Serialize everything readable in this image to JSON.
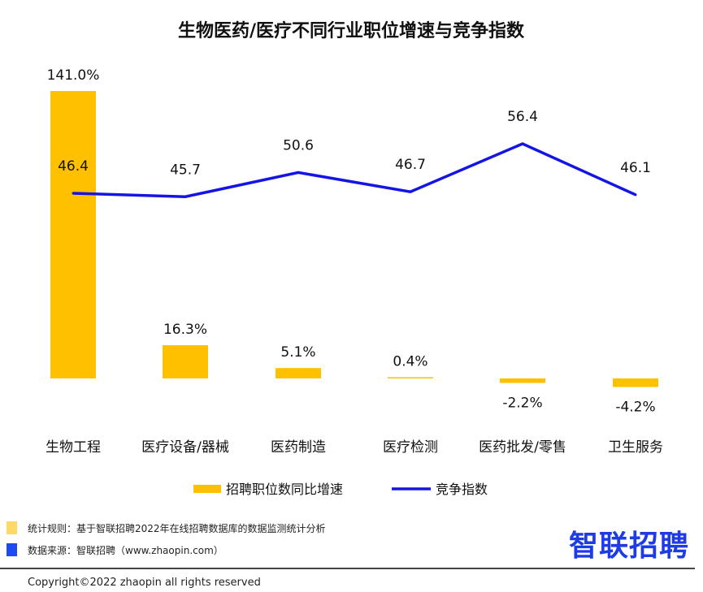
{
  "chart_data": {
    "type": "bar",
    "title": "生物医药/医疗不同行业职位增速与竞争指数",
    "categories": [
      "生物工程",
      "医疗设备/器械",
      "医药制造",
      "医疗检测",
      "医药批发/零售",
      "卫生服务"
    ],
    "series": [
      {
        "name": "招聘职位数同比增速",
        "type": "bar",
        "values": [
          141.0,
          16.3,
          5.1,
          0.4,
          -2.2,
          -4.2
        ],
        "labels": [
          "141.0%",
          "16.3%",
          "5.1%",
          "0.4%",
          "-2.2%",
          "-4.2%"
        ],
        "color": "#FFC000"
      },
      {
        "name": "竞争指数",
        "type": "line",
        "values": [
          46.4,
          45.7,
          50.6,
          46.7,
          56.4,
          46.1
        ],
        "labels": [
          "46.4",
          "45.7",
          "50.6",
          "46.7",
          "56.4",
          "46.1"
        ],
        "color": "#1414E6"
      }
    ],
    "legend_position": "bottom",
    "grid": false
  },
  "footer": {
    "rule": "统计规则：基于智联招聘2022年在线招聘数据库的数据监测统计分析",
    "source": "数据来源：智联招聘（www.zhaopin.com）",
    "logo": "智联招聘",
    "copyright": "Copyright©2022 zhaopin all rights reserved",
    "rule_color": "#FFD966",
    "source_color": "#1E4BF0"
  }
}
